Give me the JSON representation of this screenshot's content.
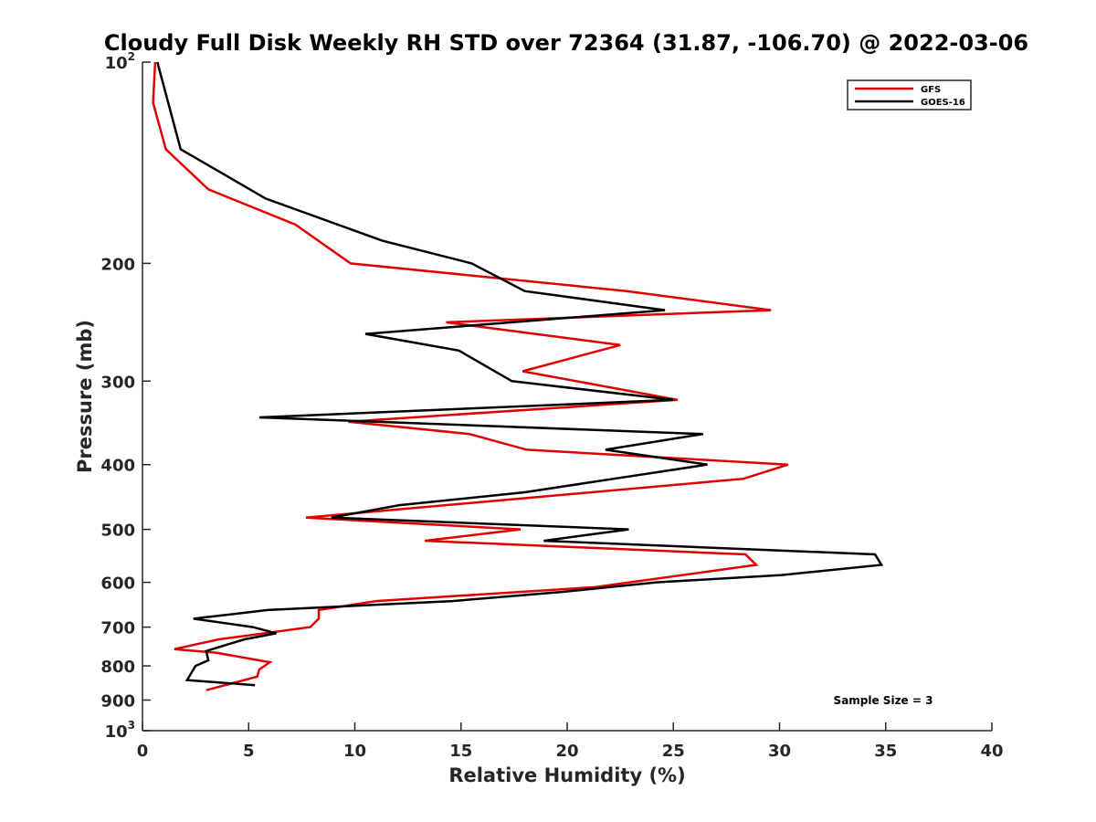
{
  "chart_data": {
    "type": "line",
    "title": "Cloudy Full Disk Weekly RH STD over 72364 (31.87, -106.70) @ 2022-03-06",
    "xlabel": "Relative Humidity (%)",
    "ylabel": "Pressure (mb)",
    "xlim": [
      0,
      40
    ],
    "ylim": [
      100,
      1000
    ],
    "y_scale": "log",
    "y_reversed": true,
    "x_ticks": [
      "0",
      "5",
      "10",
      "15",
      "20",
      "25",
      "30",
      "35",
      "40"
    ],
    "y_ticks": [
      {
        "value": 100,
        "base": "10",
        "exp": "2"
      },
      {
        "value": 200,
        "label": "200"
      },
      {
        "value": 300,
        "label": "300"
      },
      {
        "value": 400,
        "label": "400"
      },
      {
        "value": 500,
        "label": "500"
      },
      {
        "value": 600,
        "label": "600"
      },
      {
        "value": 700,
        "label": "700"
      },
      {
        "value": 800,
        "label": "800"
      },
      {
        "value": 900,
        "label": "900"
      },
      {
        "value": 1000,
        "base": "10",
        "exp": "3"
      }
    ],
    "grid": false,
    "legend_position": "top-right",
    "annotation": "Sample Size = 3",
    "series": [
      {
        "name": "GFS",
        "color": "#e00000",
        "points": [
          [
            0.6,
            100
          ],
          [
            0.5,
            115
          ],
          [
            1.1,
            135
          ],
          [
            3.1,
            155
          ],
          [
            7.2,
            175
          ],
          [
            9.8,
            200
          ],
          [
            22.8,
            220
          ],
          [
            29.6,
            235
          ],
          [
            14.3,
            245
          ],
          [
            22.5,
            265
          ],
          [
            17.9,
            290
          ],
          [
            25.2,
            320
          ],
          [
            9.7,
            345
          ],
          [
            15.4,
            360
          ],
          [
            18.1,
            380
          ],
          [
            30.4,
            400
          ],
          [
            28.3,
            420
          ],
          [
            7.7,
            480
          ],
          [
            17.8,
            500
          ],
          [
            13.3,
            520
          ],
          [
            28.4,
            545
          ],
          [
            28.9,
            565
          ],
          [
            21.3,
            610
          ],
          [
            11.0,
            640
          ],
          [
            8.3,
            660
          ],
          [
            8.3,
            680
          ],
          [
            7.9,
            700
          ],
          [
            3.6,
            730
          ],
          [
            1.5,
            755
          ],
          [
            3.5,
            765
          ],
          [
            6.0,
            790
          ],
          [
            5.5,
            810
          ],
          [
            5.4,
            830
          ],
          [
            4.8,
            840
          ],
          [
            3.0,
            870
          ]
        ]
      },
      {
        "name": "GOES-16",
        "color": "#000000",
        "points": [
          [
            0.7,
            100
          ],
          [
            1.8,
            135
          ],
          [
            5.8,
            160
          ],
          [
            11.3,
            185
          ],
          [
            15.5,
            200
          ],
          [
            18.0,
            220
          ],
          [
            24.6,
            235
          ],
          [
            10.5,
            255
          ],
          [
            14.9,
            270
          ],
          [
            17.4,
            300
          ],
          [
            25.0,
            320
          ],
          [
            5.5,
            340
          ],
          [
            26.4,
            360
          ],
          [
            21.8,
            380
          ],
          [
            26.6,
            400
          ],
          [
            22.2,
            420
          ],
          [
            18.0,
            440
          ],
          [
            12.1,
            460
          ],
          [
            8.9,
            480
          ],
          [
            22.9,
            500
          ],
          [
            18.9,
            520
          ],
          [
            34.5,
            545
          ],
          [
            34.8,
            565
          ],
          [
            30.1,
            585
          ],
          [
            24.2,
            600
          ],
          [
            19.8,
            620
          ],
          [
            14.6,
            640
          ],
          [
            5.9,
            660
          ],
          [
            2.4,
            680
          ],
          [
            5.2,
            700
          ],
          [
            6.3,
            715
          ],
          [
            4.8,
            730
          ],
          [
            3.0,
            760
          ],
          [
            3.1,
            785
          ],
          [
            2.5,
            800
          ],
          [
            2.1,
            840
          ],
          [
            5.3,
            855
          ]
        ]
      }
    ]
  }
}
